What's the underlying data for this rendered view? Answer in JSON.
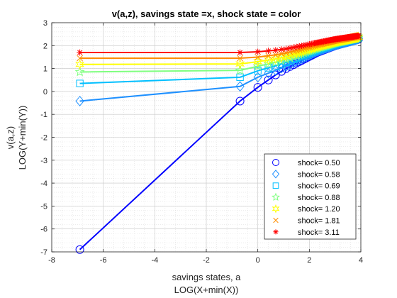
{
  "chart_data": {
    "type": "line",
    "title": "v(a,z), savings state =x, shock state = color",
    "xlabel": [
      "savings states, a",
      "LOG(X+min(X))"
    ],
    "ylabel": [
      "v(a,z)",
      "LOG(Y+min(Y))"
    ],
    "xlim": [
      -8,
      4
    ],
    "ylim": [
      -7,
      3
    ],
    "xticks": [
      -8,
      -6,
      -4,
      -2,
      0,
      2,
      4
    ],
    "yticks": [
      -7,
      -6,
      -5,
      -4,
      -3,
      -2,
      -1,
      0,
      1,
      2,
      3
    ],
    "grid": "minor",
    "legend_position": "bottom-right",
    "x": [
      -6.91,
      -0.69,
      0.0,
      0.41,
      0.69,
      0.92,
      1.1,
      1.25,
      1.39,
      1.5,
      1.61,
      1.7,
      1.79,
      1.87,
      1.95,
      2.01,
      2.08,
      2.14,
      2.2,
      2.25,
      2.3,
      2.35,
      2.4,
      2.44,
      2.48,
      2.53,
      2.56,
      2.6,
      2.64,
      2.67,
      2.71,
      2.74,
      2.77,
      2.8,
      2.83,
      2.86,
      2.89,
      2.92,
      2.94,
      2.97,
      3.0,
      3.02,
      3.04,
      3.07,
      3.09,
      3.11,
      3.14,
      3.16,
      3.18,
      3.2,
      3.22,
      3.24,
      3.26,
      3.28,
      3.3,
      3.32,
      3.33,
      3.35,
      3.37,
      3.39,
      3.4,
      3.42,
      3.43,
      3.45,
      3.47,
      3.48,
      3.5,
      3.51,
      3.53,
      3.54,
      3.56,
      3.57,
      3.58,
      3.6,
      3.61,
      3.62,
      3.64,
      3.65,
      3.66,
      3.67,
      3.69,
      3.7,
      3.71,
      3.72,
      3.73,
      3.74,
      3.76,
      3.77,
      3.78,
      3.79,
      3.8,
      3.81,
      3.82,
      3.83,
      3.84,
      3.85,
      3.86,
      3.87,
      3.88,
      3.89,
      3.9,
      3.91
    ],
    "series": [
      {
        "name": "shock=  0.50",
        "marker": "circle",
        "color": "#0000ff",
        "anchors": [
          [
            -6.91,
            -6.9
          ],
          [
            -0.69,
            -0.42
          ],
          [
            0.0,
            0.18
          ],
          [
            0.69,
            0.72
          ],
          [
            1.1,
            1.0
          ],
          [
            1.61,
            1.3
          ],
          [
            2.3,
            1.7
          ],
          [
            3.0,
            2.0
          ],
          [
            3.91,
            2.28
          ]
        ]
      },
      {
        "name": "shock=  0.58",
        "marker": "diamond",
        "color": "#1e90ff",
        "anchors": [
          [
            -6.91,
            -0.42
          ],
          [
            -0.69,
            0.22
          ],
          [
            0.0,
            0.62
          ],
          [
            0.69,
            0.92
          ],
          [
            1.1,
            1.1
          ],
          [
            1.61,
            1.38
          ],
          [
            2.3,
            1.75
          ],
          [
            3.0,
            2.03
          ],
          [
            3.91,
            2.3
          ]
        ]
      },
      {
        "name": "shock=  0.69",
        "marker": "square",
        "color": "#00bfff",
        "anchors": [
          [
            -6.91,
            0.35
          ],
          [
            -0.69,
            0.62
          ],
          [
            0.0,
            0.9
          ],
          [
            0.69,
            1.12
          ],
          [
            1.1,
            1.27
          ],
          [
            1.61,
            1.5
          ],
          [
            2.3,
            1.82
          ],
          [
            3.0,
            2.08
          ],
          [
            3.91,
            2.33
          ]
        ]
      },
      {
        "name": "shock=  0.88",
        "marker": "pentagram",
        "color": "#7fff7f",
        "anchors": [
          [
            -6.91,
            0.85
          ],
          [
            -0.69,
            0.92
          ],
          [
            0.0,
            1.1
          ],
          [
            0.69,
            1.27
          ],
          [
            1.1,
            1.4
          ],
          [
            1.61,
            1.6
          ],
          [
            2.3,
            1.88
          ],
          [
            3.0,
            2.12
          ],
          [
            3.91,
            2.35
          ]
        ]
      },
      {
        "name": "shock=  1.20",
        "marker": "hexagram",
        "color": "#ffff00",
        "anchors": [
          [
            -6.91,
            1.18
          ],
          [
            -0.69,
            1.2
          ],
          [
            0.0,
            1.3
          ],
          [
            0.69,
            1.42
          ],
          [
            1.1,
            1.52
          ],
          [
            1.61,
            1.7
          ],
          [
            2.3,
            1.95
          ],
          [
            3.0,
            2.17
          ],
          [
            3.91,
            2.37
          ]
        ]
      },
      {
        "name": "shock=  1.81",
        "marker": "x",
        "color": "#ff8c00",
        "anchors": [
          [
            -6.91,
            1.45
          ],
          [
            -0.69,
            1.45
          ],
          [
            0.0,
            1.5
          ],
          [
            0.69,
            1.6
          ],
          [
            1.1,
            1.68
          ],
          [
            1.61,
            1.82
          ],
          [
            2.3,
            2.03
          ],
          [
            3.0,
            2.22
          ],
          [
            3.91,
            2.4
          ]
        ]
      },
      {
        "name": "shock=  3.11",
        "marker": "asterisk",
        "color": "#ff0000",
        "anchors": [
          [
            -6.91,
            1.7
          ],
          [
            -0.69,
            1.7
          ],
          [
            0.0,
            1.73
          ],
          [
            0.69,
            1.8
          ],
          [
            1.1,
            1.86
          ],
          [
            1.61,
            1.97
          ],
          [
            2.3,
            2.13
          ],
          [
            3.0,
            2.28
          ],
          [
            3.91,
            2.43
          ]
        ]
      }
    ]
  }
}
